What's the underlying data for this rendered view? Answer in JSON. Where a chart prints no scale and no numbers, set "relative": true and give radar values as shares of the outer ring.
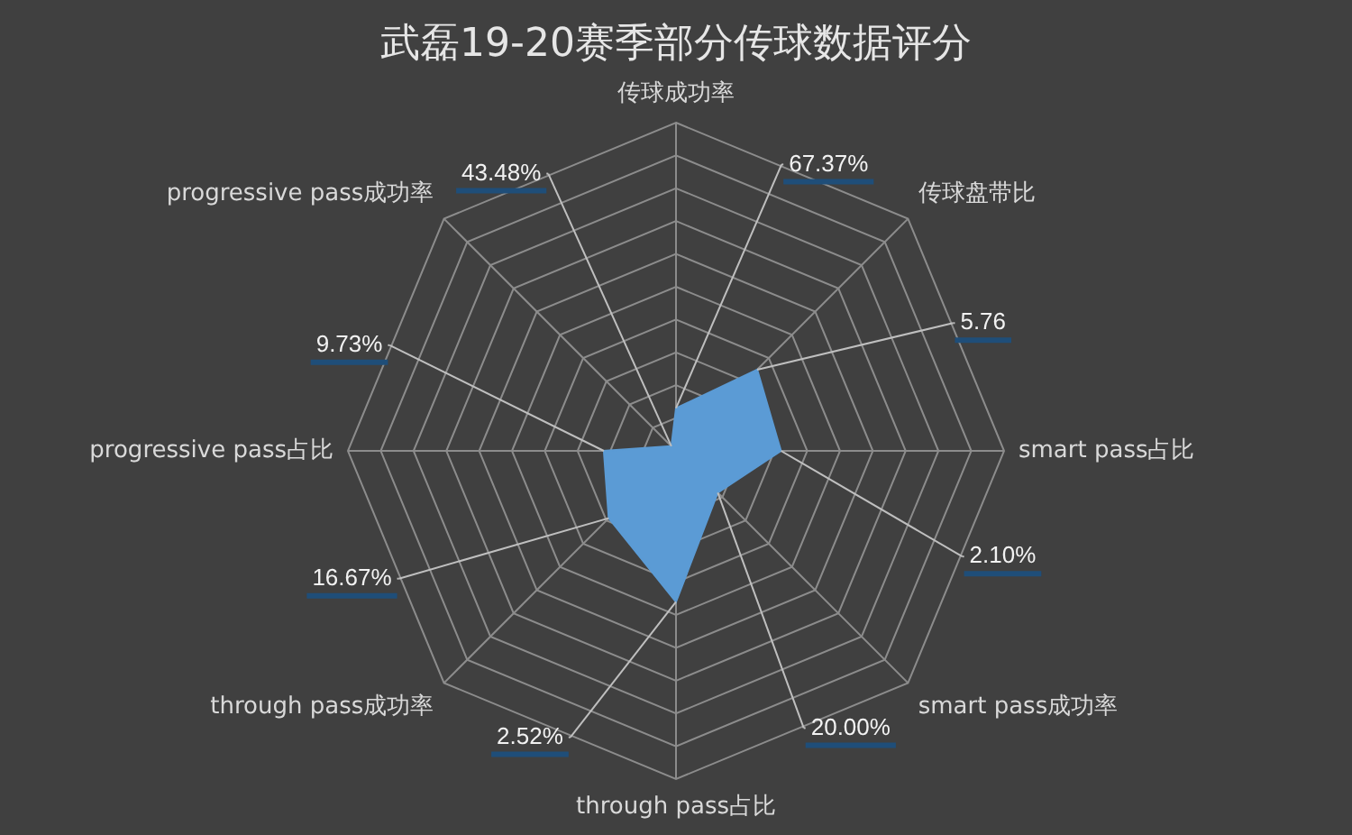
{
  "chart_data": {
    "type": "radar",
    "title": "武磊19-20赛季部分传球数据评分",
    "relative": true,
    "categories": [
      "传球成功率",
      "传球盘带比",
      "smart pass占比",
      "smart pass成功率",
      "through pass占比",
      "through pass成功率",
      "progressive pass占比",
      "progressive pass成功率"
    ],
    "series": [
      {
        "color": "#5b9bd5",
        "values": [
          0.13,
          0.35,
          0.32,
          0.18,
          0.46,
          0.29,
          0.22,
          0.02
        ]
      }
    ],
    "annotations": [
      "67.37%",
      "5.76",
      "2.10%",
      "20.00%",
      "2.52%",
      "16.67%",
      "9.73%",
      "43.48%"
    ],
    "grid": true,
    "legend": false,
    "marker": "none"
  }
}
